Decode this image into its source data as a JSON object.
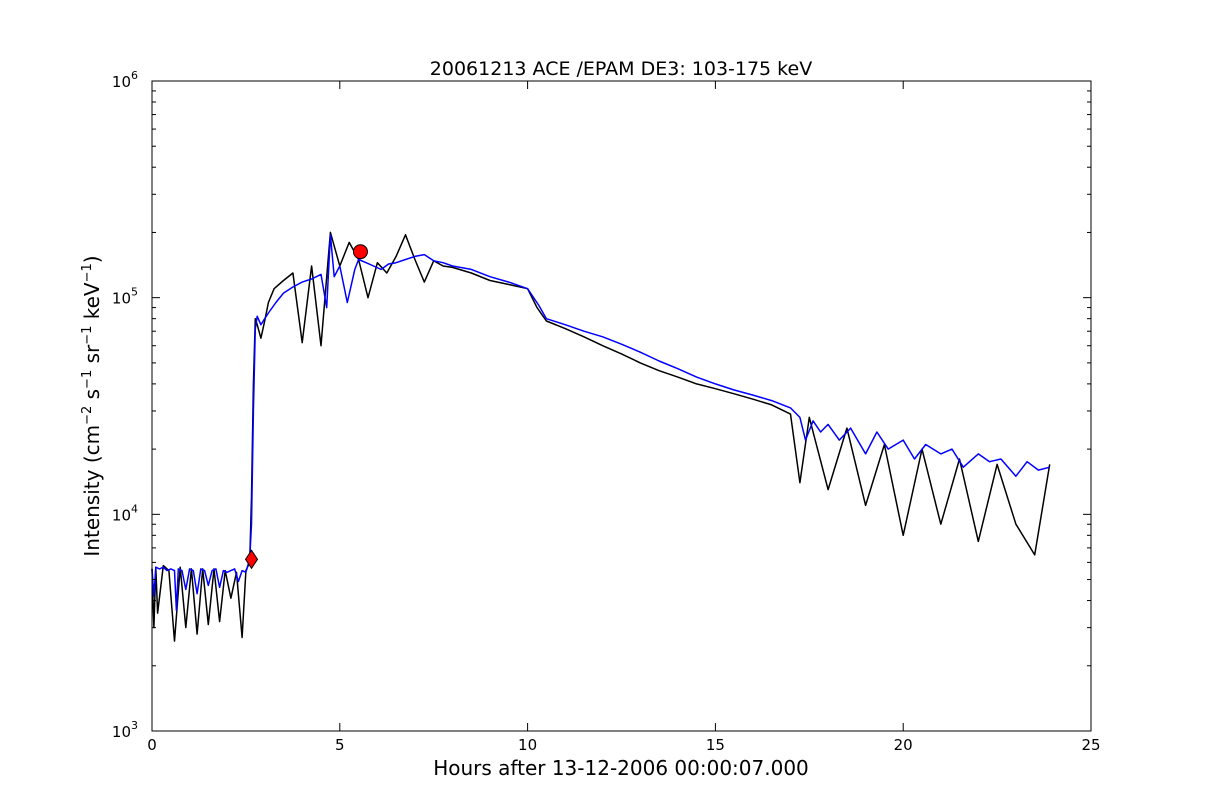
{
  "chart_data": {
    "type": "line",
    "title": "20061213 ACE /EPAM DE3: 103-175 keV",
    "xlabel": "Hours after 13-12-2006 00:00:07.000",
    "ylabel": "Intensity (cm^-2 s^-1 sr^-1 keV^-1)",
    "ylabel_parts": {
      "prefix": "Intensity (cm",
      "exp1": "−2",
      "s": " s",
      "exp2": "−1",
      "sr": " sr",
      "exp3": "−1",
      "kev": " keV",
      "exp4": "−1",
      "suffix": ")"
    },
    "xlim": [
      0,
      25
    ],
    "ylim": [
      1000,
      1000000
    ],
    "yscale": "log",
    "grid": false,
    "x_ticks": [
      {
        "value": 0,
        "label": "0"
      },
      {
        "value": 5,
        "label": "5"
      },
      {
        "value": 10,
        "label": "10"
      },
      {
        "value": 15,
        "label": "15"
      },
      {
        "value": 20,
        "label": "20"
      },
      {
        "value": 25,
        "label": "25"
      }
    ],
    "y_ticks": [
      {
        "value": 1000,
        "base": "10",
        "exp": "3"
      },
      {
        "value": 10000,
        "base": "10",
        "exp": "4"
      },
      {
        "value": 100000,
        "base": "10",
        "exp": "5"
      },
      {
        "value": 1000000,
        "base": "10",
        "exp": "6"
      }
    ],
    "series": [
      {
        "color": "#000000",
        "style": "raw noisy data",
        "x": [
          0.0,
          0.05,
          0.1,
          0.15,
          0.3,
          0.45,
          0.6,
          0.75,
          0.9,
          1.05,
          1.2,
          1.35,
          1.5,
          1.65,
          1.8,
          1.95,
          2.1,
          2.25,
          2.4,
          2.5,
          2.6,
          2.65,
          2.7,
          2.75,
          2.8,
          2.9,
          3.0,
          3.1,
          3.25,
          3.5,
          3.75,
          4.0,
          4.25,
          4.5,
          4.75,
          5.0,
          5.25,
          5.5,
          5.75,
          6.0,
          6.25,
          6.5,
          6.75,
          7.0,
          7.25,
          7.5,
          7.75,
          8.0,
          8.5,
          9.0,
          9.5,
          10.0,
          10.25,
          10.5,
          11.0,
          11.5,
          12.0,
          12.5,
          13.0,
          13.5,
          14.0,
          14.5,
          15.0,
          15.5,
          16.0,
          16.5,
          17.0,
          17.25,
          17.5,
          18.0,
          18.5,
          19.0,
          19.5,
          20.0,
          20.5,
          21.0,
          21.5,
          22.0,
          22.5,
          23.0,
          23.5,
          23.9
        ],
        "y": [
          5600,
          3000,
          5700,
          3500,
          5800,
          5500,
          2600,
          5700,
          3000,
          5600,
          2800,
          5600,
          3100,
          5600,
          3200,
          5500,
          4100,
          5400,
          2700,
          5500,
          6000,
          12000,
          40000,
          80000,
          75000,
          65000,
          78000,
          95000,
          110000,
          120000,
          130000,
          62000,
          140000,
          60000,
          200000,
          140000,
          180000,
          150000,
          100000,
          145000,
          130000,
          155000,
          195000,
          150000,
          118000,
          148000,
          140000,
          138000,
          130000,
          120000,
          115000,
          110000,
          90000,
          78000,
          72000,
          66000,
          60000,
          55000,
          50000,
          46000,
          43000,
          40000,
          38000,
          36000,
          34000,
          32000,
          29000,
          14000,
          28000,
          13000,
          25000,
          11000,
          21000,
          8000,
          20000,
          9000,
          18000,
          7500,
          17000,
          9000,
          6500,
          17000
        ]
      },
      {
        "color": "#0000ff",
        "style": "smoothed data",
        "x": [
          0.0,
          0.05,
          0.1,
          0.2,
          0.3,
          0.4,
          0.5,
          0.6,
          0.65,
          0.7,
          0.8,
          0.9,
          1.0,
          1.1,
          1.2,
          1.3,
          1.4,
          1.5,
          1.6,
          1.7,
          1.8,
          1.9,
          2.0,
          2.1,
          2.2,
          2.3,
          2.4,
          2.5,
          2.55,
          2.6,
          2.65,
          2.7,
          2.75,
          2.8,
          2.9,
          3.0,
          3.1,
          3.3,
          3.5,
          3.75,
          4.0,
          4.25,
          4.5,
          4.65,
          4.75,
          4.85,
          5.0,
          5.2,
          5.4,
          5.5,
          5.7,
          5.9,
          6.1,
          6.3,
          6.5,
          6.75,
          7.0,
          7.25,
          7.5,
          7.75,
          8.0,
          8.5,
          9.0,
          9.5,
          10.0,
          10.3,
          10.5,
          11.0,
          11.5,
          12.0,
          12.5,
          13.0,
          13.5,
          14.0,
          14.5,
          15.0,
          15.5,
          16.0,
          16.5,
          17.0,
          17.25,
          17.4,
          17.6,
          17.8,
          18.0,
          18.3,
          18.6,
          19.0,
          19.3,
          19.6,
          20.0,
          20.3,
          20.6,
          21.0,
          21.3,
          21.6,
          22.0,
          22.3,
          22.6,
          23.0,
          23.3,
          23.6,
          23.9
        ],
        "y": [
          5600,
          4200,
          5700,
          5600,
          5700,
          5500,
          5600,
          5500,
          3600,
          5600,
          5500,
          4500,
          5600,
          5500,
          4300,
          5600,
          5500,
          4700,
          5500,
          5600,
          4600,
          5500,
          5400,
          5500,
          5600,
          4900,
          5500,
          5400,
          5800,
          6200,
          9000,
          30000,
          72000,
          82000,
          75000,
          80000,
          85000,
          95000,
          105000,
          112000,
          118000,
          122000,
          128000,
          90000,
          195000,
          125000,
          140000,
          95000,
          135000,
          150000,
          145000,
          140000,
          135000,
          143000,
          145000,
          150000,
          155000,
          158000,
          148000,
          145000,
          140000,
          135000,
          125000,
          118000,
          110000,
          92000,
          80000,
          75000,
          70000,
          66000,
          61000,
          56000,
          51000,
          47000,
          43000,
          40000,
          37500,
          35500,
          33500,
          31000,
          28000,
          22000,
          27000,
          24000,
          26000,
          22000,
          25000,
          19000,
          24000,
          20000,
          22000,
          18000,
          21000,
          19000,
          20000,
          16500,
          19000,
          17500,
          18000,
          15000,
          17500,
          16000,
          16500
        ]
      }
    ],
    "markers": [
      {
        "shape": "diamond",
        "x": 2.65,
        "y": 6200,
        "color": "#ff0000"
      },
      {
        "shape": "circle",
        "x": 5.55,
        "y": 163000,
        "color": "#ff0000"
      }
    ]
  }
}
